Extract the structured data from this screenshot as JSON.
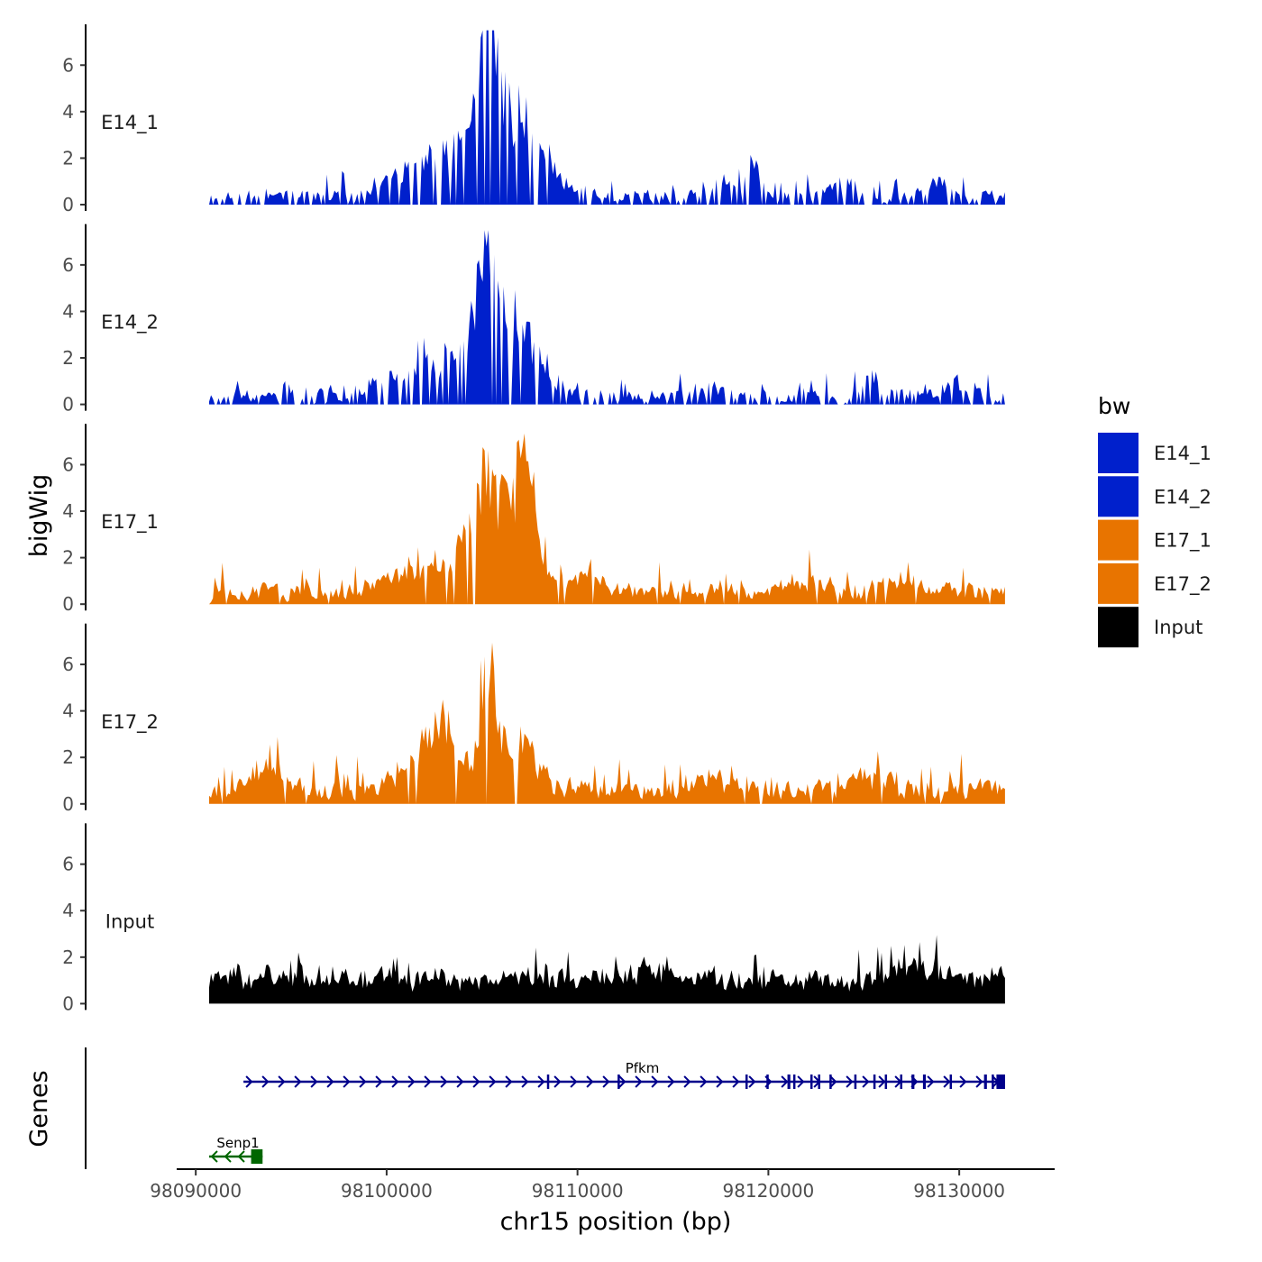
{
  "chart_data": {
    "type": "area",
    "chromosome": "chr15",
    "xlabel": "chr15 position (bp)",
    "ylabel": "bigWig",
    "genes_label": "Genes",
    "xlim": [
      98089000,
      98135000
    ],
    "data_range": [
      98090700,
      98132400
    ],
    "ylim": [
      0,
      7.6
    ],
    "x_ticks": [
      98090000,
      98100000,
      98110000,
      98120000,
      98130000
    ],
    "x_tick_labels": [
      "98090000",
      "98100000",
      "98110000",
      "98120000",
      "98130000"
    ],
    "y_ticks": [
      0,
      2,
      4,
      6
    ],
    "y_tick_labels": [
      "0",
      "2",
      "4",
      "6"
    ],
    "legend": {
      "title": "bw",
      "entries": [
        {
          "label": "E14_1",
          "color": "#0020cc"
        },
        {
          "label": "E14_2",
          "color": "#0020cc"
        },
        {
          "label": "E17_1",
          "color": "#e87400"
        },
        {
          "label": "E17_2",
          "color": "#e87400"
        },
        {
          "label": "Input",
          "color": "#000000"
        }
      ]
    },
    "series": [
      {
        "name": "E14_1",
        "color": "#0020cc",
        "seed": 11,
        "noise": 0.55,
        "gap": 0.28,
        "peaks": [
          [
            98105300,
            6.8,
            380
          ],
          [
            98106800,
            3.2,
            1400
          ],
          [
            98103500,
            1.7,
            1700
          ],
          [
            98101000,
            0.7,
            900
          ],
          [
            98117500,
            0.6,
            500
          ],
          [
            98119200,
            0.9,
            450
          ],
          [
            98129000,
            0.7,
            500
          ],
          [
            98124000,
            0.5,
            500
          ]
        ]
      },
      {
        "name": "E14_2",
        "color": "#0020cc",
        "seed": 23,
        "noise": 0.55,
        "gap": 0.3,
        "peaks": [
          [
            98105200,
            4.7,
            420
          ],
          [
            98106500,
            3.1,
            1300
          ],
          [
            98103200,
            1.6,
            1500
          ],
          [
            98100000,
            0.6,
            1000
          ],
          [
            98116800,
            0.5,
            500
          ],
          [
            98125300,
            0.8,
            500
          ],
          [
            98129600,
            0.6,
            500
          ]
        ]
      },
      {
        "name": "E17_1",
        "color": "#e87400",
        "seed": 37,
        "noise": 0.75,
        "gap": 0.06,
        "peaks": [
          [
            98105000,
            3.4,
            700
          ],
          [
            98107200,
            3.6,
            650
          ],
          [
            98102200,
            1.2,
            1500
          ],
          [
            98106200,
            1.8,
            1200
          ],
          [
            98110500,
            0.7,
            1000
          ],
          [
            98122000,
            0.6,
            900
          ],
          [
            98127000,
            0.6,
            1000
          ]
        ]
      },
      {
        "name": "E17_2",
        "color": "#e87400",
        "seed": 53,
        "noise": 0.85,
        "gap": 0.06,
        "peaks": [
          [
            98105300,
            5.6,
            400
          ],
          [
            98107000,
            2.2,
            900
          ],
          [
            98103000,
            2.1,
            800
          ],
          [
            98102000,
            1.1,
            1300
          ],
          [
            98093600,
            0.9,
            900
          ],
          [
            98117000,
            0.7,
            800
          ],
          [
            98125200,
            0.6,
            900
          ]
        ]
      },
      {
        "name": "Input",
        "color": "#000000",
        "seed": 71,
        "noise": 0.75,
        "gap": 0.0,
        "base": 0.55,
        "peaks": [
          [
            98127500,
            0.7,
            900
          ],
          [
            98113800,
            0.3,
            1000
          ]
        ]
      }
    ],
    "genes": [
      {
        "name": "Senp1",
        "strand": "-",
        "color": "#006600",
        "start": 98090700,
        "end": 98093500,
        "exons": [
          [
            98092900,
            98093500
          ]
        ]
      },
      {
        "name": "Pfkm",
        "strand": "+",
        "color": "#00008b",
        "start": 98092500,
        "end": 98132400,
        "exons": [
          [
            98108400,
            98108500
          ],
          [
            98112100,
            98112200
          ],
          [
            98118800,
            98118900
          ],
          [
            98119900,
            98120000
          ],
          [
            98121000,
            98121150
          ],
          [
            98121300,
            98121400
          ],
          [
            98122200,
            98122300
          ],
          [
            98122600,
            98122700
          ],
          [
            98123200,
            98123300
          ],
          [
            98124500,
            98124600
          ],
          [
            98125500,
            98125600
          ],
          [
            98126100,
            98126200
          ],
          [
            98126900,
            98127000
          ],
          [
            98127500,
            98127650
          ],
          [
            98128100,
            98128250
          ],
          [
            98129500,
            98129600
          ],
          [
            98131300,
            98131450
          ],
          [
            98131700,
            98131800
          ],
          [
            98131950,
            98132400
          ]
        ]
      }
    ]
  }
}
